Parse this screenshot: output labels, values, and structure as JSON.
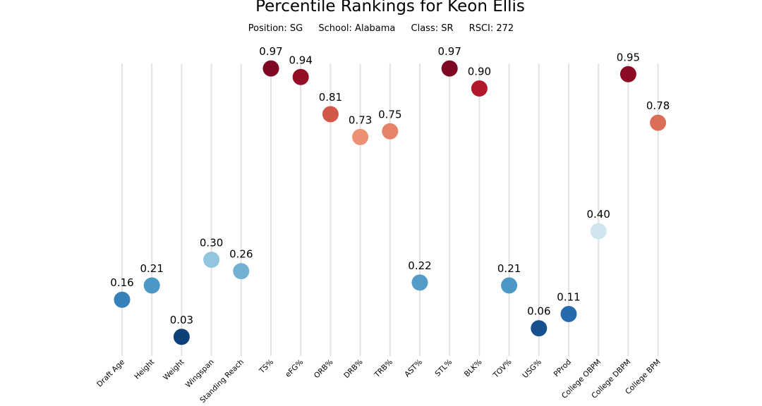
{
  "chart_data": {
    "type": "scatter",
    "title": "Percentile Rankings for Keon Ellis",
    "subtitle": {
      "position": "Position: SG",
      "school": "School: Alabama",
      "class": "Class: SR",
      "rsci": "RSCI: 272"
    },
    "categories": [
      "Draft Age",
      "Height",
      "Weight",
      "Wingspan",
      "Standing Reach",
      "TS%",
      "eFG%",
      "ORB%",
      "DRB%",
      "TRB%",
      "AST%",
      "STL%",
      "BLK%",
      "TOV%",
      "USG%",
      "PProd",
      "College OBPM",
      "College DBPM",
      "College BPM"
    ],
    "values": [
      0.16,
      0.21,
      0.03,
      0.3,
      0.26,
      0.97,
      0.94,
      0.81,
      0.73,
      0.75,
      0.22,
      0.97,
      0.9,
      0.21,
      0.06,
      0.11,
      0.4,
      0.95,
      0.78
    ],
    "labels": [
      "0.16",
      "0.21",
      "0.03",
      "0.30",
      "0.26",
      "0.97",
      "0.94",
      "0.81",
      "0.73",
      "0.75",
      "0.22",
      "0.97",
      "0.90",
      "0.21",
      "0.06",
      "0.11",
      "0.40",
      "0.95",
      "0.78"
    ],
    "ylim": [
      0,
      1
    ],
    "grid": "vertical lines per category",
    "colormap": "RdBu_r"
  }
}
